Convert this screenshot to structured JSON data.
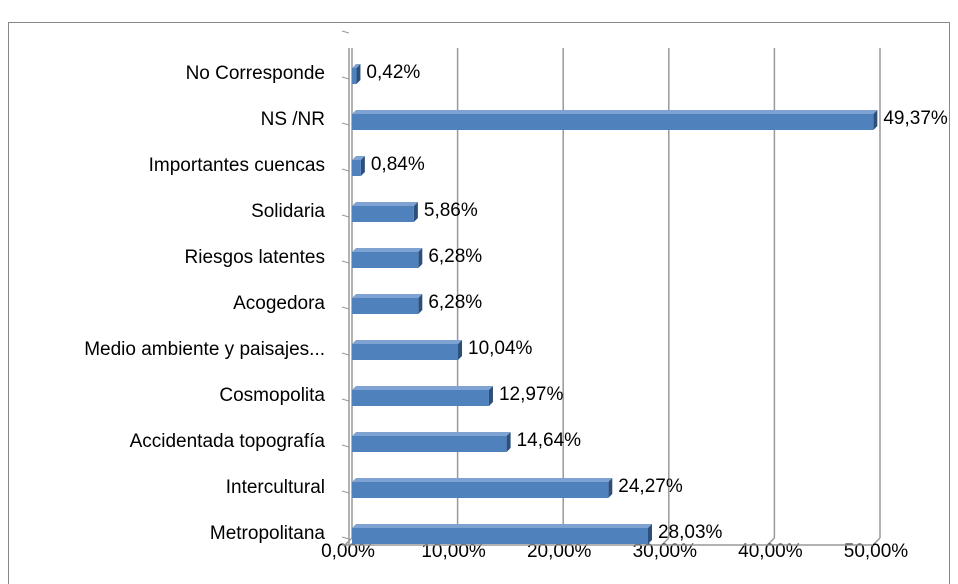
{
  "chart_data": {
    "type": "bar",
    "orientation": "horizontal",
    "categories": [
      "No Corresponde",
      "NS /NR",
      "Importantes cuencas",
      "Solidaria",
      "Riesgos latentes",
      "Acogedora",
      "Medio ambiente y paisajes...",
      "Cosmopolita",
      "Accidentada topografía",
      "Intercultural",
      "Metropolitana"
    ],
    "values": [
      0.42,
      49.37,
      0.84,
      5.86,
      6.28,
      6.28,
      10.04,
      12.97,
      14.64,
      24.27,
      28.03
    ],
    "value_labels": [
      "0,42%",
      "49,37%",
      "0,84%",
      "5,86%",
      "6,28%",
      "6,28%",
      "10,04%",
      "12,97%",
      "14,64%",
      "24,27%",
      "28,03%"
    ],
    "color": "#4f81bd",
    "xlim": [
      0,
      50
    ],
    "xticks": [
      {
        "value": 0,
        "label": "0,00%"
      },
      {
        "value": 10,
        "label": "10,00%"
      },
      {
        "value": 20,
        "label": "20,00%"
      },
      {
        "value": 30,
        "label": "30,00%"
      },
      {
        "value": 40,
        "label": "40,00%"
      },
      {
        "value": 50,
        "label": "50,00%"
      }
    ],
    "grid": true
  }
}
